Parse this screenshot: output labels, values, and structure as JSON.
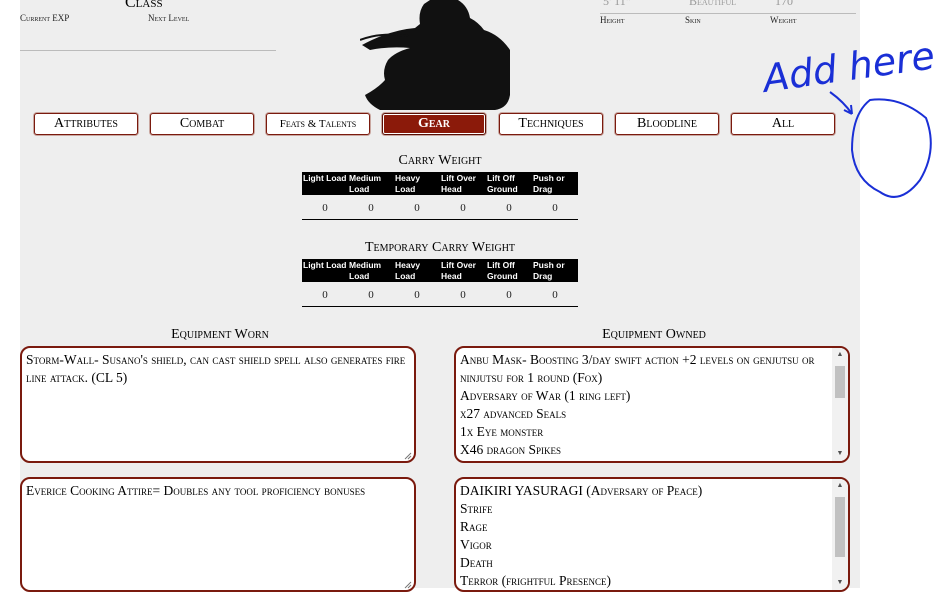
{
  "header": {
    "class_label": "Class",
    "current_exp_label": "Current EXP",
    "next_level_label": "Next Level",
    "height_value": "5' 11\"",
    "skin_value": "Beautiful",
    "weight_value": "170",
    "height_label": "Height",
    "skin_label": "Skin",
    "weight_label": "Weight"
  },
  "tabs": [
    {
      "label": "Attributes",
      "active": false
    },
    {
      "label": "Combat",
      "active": false
    },
    {
      "label": "Feats & Talents",
      "active": false
    },
    {
      "label": "Gear",
      "active": true
    },
    {
      "label": "Techniques",
      "active": false
    },
    {
      "label": "Bloodline",
      "active": false
    },
    {
      "label": "All",
      "active": false
    }
  ],
  "carry_weight": {
    "title": "Carry Weight",
    "headers": [
      "Light Load",
      "Medium Load",
      "Heavy Load",
      "Lift Over Head",
      "Lift Off Ground",
      "Push or Drag"
    ],
    "values": [
      "0",
      "0",
      "0",
      "0",
      "0",
      "0"
    ]
  },
  "temp_carry_weight": {
    "title": "Temporary Carry Weight",
    "headers": [
      "Light Load",
      "Medium Load",
      "Heavy Load",
      "Lift Over Head",
      "Lift Off Ground",
      "Push or Drag"
    ],
    "values": [
      "0",
      "0",
      "0",
      "0",
      "0",
      "0"
    ]
  },
  "equipment": {
    "worn_title": "Equipment Worn",
    "owned_title": "Equipment Owned",
    "worn_1": "Storm-Wall- Susano's shield, can cast shield spell also generates fire line attack. (CL 5)",
    "worn_2": "Everice Cooking Attire= Doubles any tool proficiency bonuses",
    "owned_1": "Anbu Mask- Boosting 3/day swift action +2 levels on genjutsu or ninjutsu for 1 round (Fox)\nAdversary of War (1 ring left)\nx27 advanced Seals\n1x Eye monster\nX46 dragon Spikes",
    "owned_2": "DAIKIRI YASURAGI (Adversary of Peace)\nStrife\nRage\nVigor\nDeath\nTerror (frightful Presence)"
  },
  "annotation": {
    "text": "Add here",
    "color": "#1a2fd6"
  }
}
